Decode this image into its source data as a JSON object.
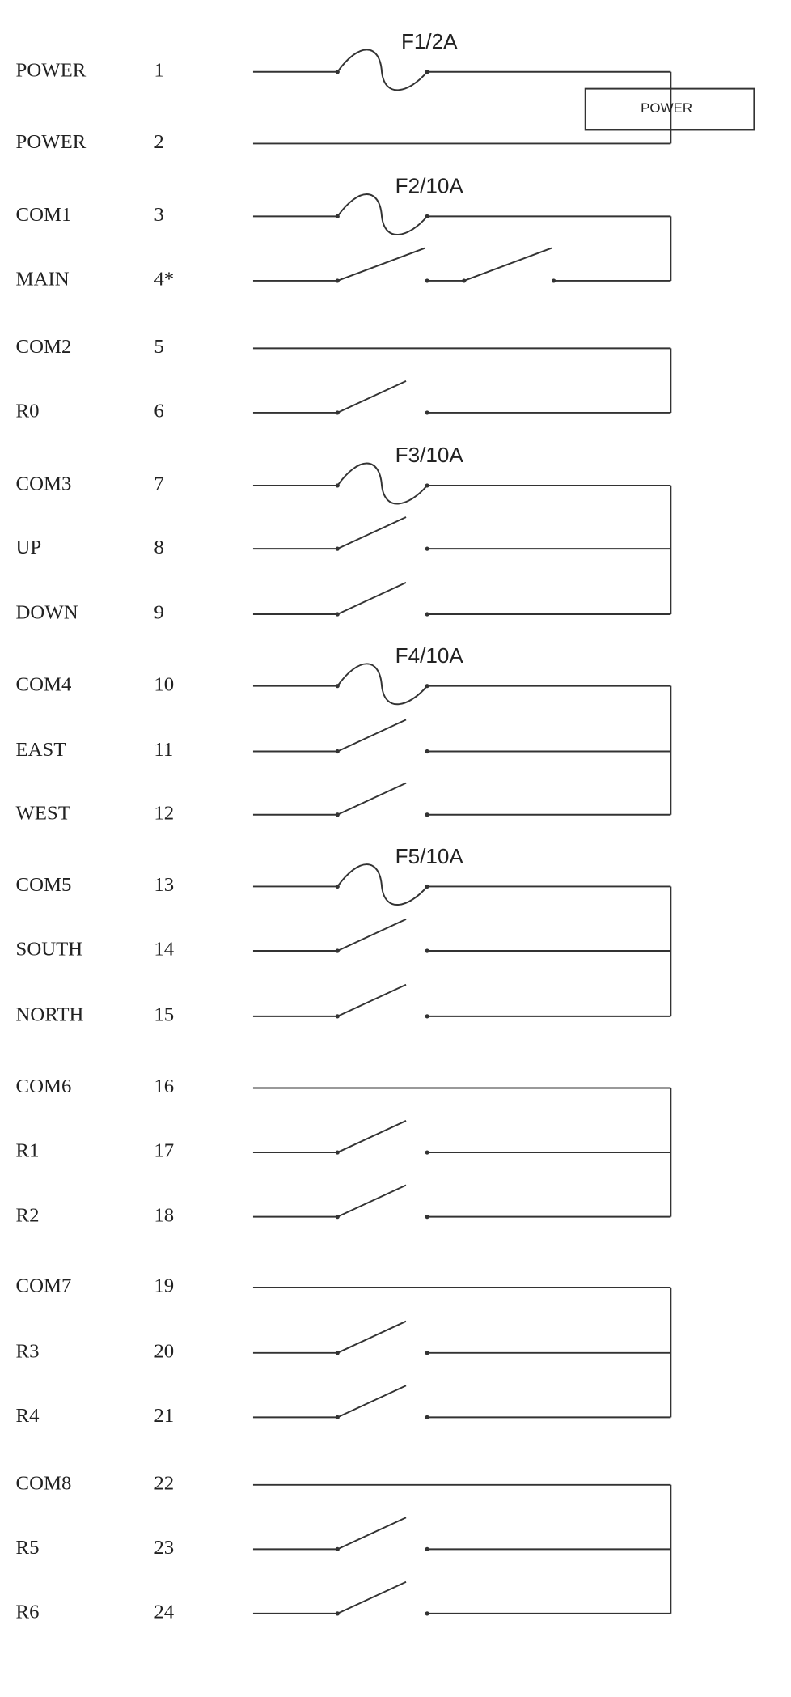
{
  "terminals": [
    {
      "label": "POWER",
      "number": "1"
    },
    {
      "label": "POWER",
      "number": "2"
    },
    {
      "label": "COM1",
      "number": "3"
    },
    {
      "label": "MAIN",
      "number": "4*"
    },
    {
      "label": "COM2",
      "number": "5"
    },
    {
      "label": "R0",
      "number": "6"
    },
    {
      "label": "COM3",
      "number": "7"
    },
    {
      "label": "UP",
      "number": "8"
    },
    {
      "label": "DOWN",
      "number": "9"
    },
    {
      "label": "COM4",
      "number": "10"
    },
    {
      "label": "EAST",
      "number": "11"
    },
    {
      "label": "WEST",
      "number": "12"
    },
    {
      "label": "COM5",
      "number": "13"
    },
    {
      "label": "SOUTH",
      "number": "14"
    },
    {
      "label": "NORTH",
      "number": "15"
    },
    {
      "label": "COM6",
      "number": "16"
    },
    {
      "label": "R1",
      "number": "17"
    },
    {
      "label": "R2",
      "number": "18"
    },
    {
      "label": "COM7",
      "number": "19"
    },
    {
      "label": "R3",
      "number": "20"
    },
    {
      "label": "R4",
      "number": "21"
    },
    {
      "label": "COM8",
      "number": "22"
    },
    {
      "label": "R5",
      "number": "23"
    },
    {
      "label": "R6",
      "number": "24"
    }
  ],
  "fuses": [
    "F1/2A",
    "F2/10A",
    "F3/10A",
    "F4/10A",
    "F5/10A"
  ],
  "power_box": "POWER"
}
